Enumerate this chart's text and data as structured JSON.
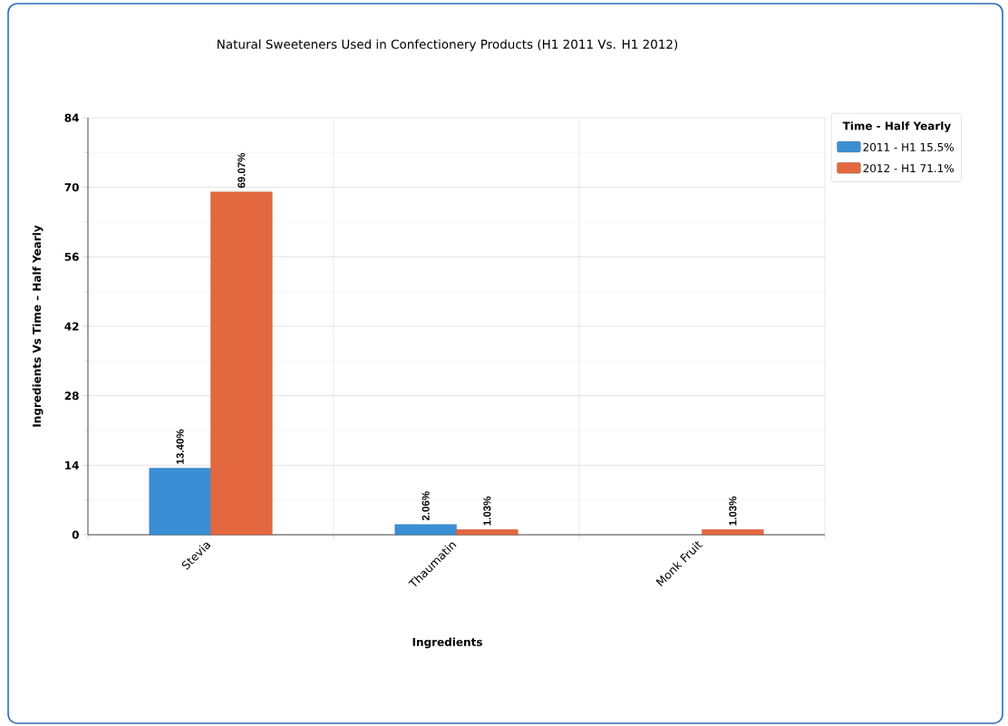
{
  "chart_data": {
    "type": "bar",
    "title": "Natural Sweeteners Used in Confectionery Products (H1 2011 Vs. H1 2012)",
    "xlabel": "Ingredients",
    "ylabel": "Ingredients Vs Time – Half Yearly",
    "legend_title": "Time - Half Yearly",
    "categories": [
      "Stevia",
      "Thaumatin",
      "Monk Fruit"
    ],
    "series": [
      {
        "name": "2011 - H1 15.5%",
        "color": "#3a8fd4",
        "values": [
          13.4,
          2.06,
          null
        ],
        "value_labels": [
          "13.40%",
          "2.06%",
          null
        ]
      },
      {
        "name": "2012 - H1 71.1%",
        "color": "#e4683f",
        "values": [
          69.07,
          1.03,
          1.03
        ],
        "value_labels": [
          "69.07%",
          "1.03%",
          "1.03%"
        ]
      }
    ],
    "ylim": [
      0,
      84
    ],
    "yticks": [
      0,
      14,
      28,
      42,
      56,
      70,
      84
    ],
    "grid": true,
    "legend": "right"
  }
}
